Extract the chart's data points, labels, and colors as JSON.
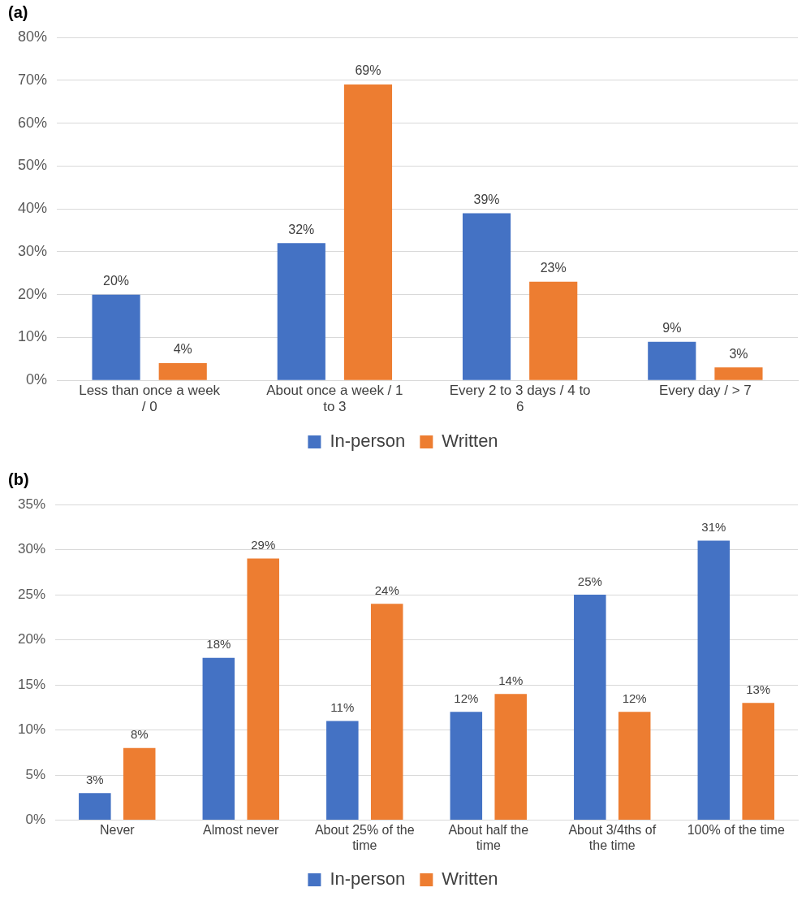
{
  "chart_data": [
    {
      "type": "bar",
      "title": "(a)",
      "categories": [
        "Less than once a week / 0",
        "About once a week / 1 to 3",
        "Every 2 to 3 days / 4 to 6",
        "Every day / > 7"
      ],
      "series": [
        {
          "name": "In-person",
          "color": "#4472c4",
          "values": [
            20,
            32,
            39,
            9
          ],
          "value_labels": [
            "20%",
            "32%",
            "39%",
            "9%"
          ]
        },
        {
          "name": "Written",
          "color": "#ed7d31",
          "values": [
            4,
            69,
            23,
            3
          ],
          "value_labels": [
            "4%",
            "69%",
            "23%",
            "3%"
          ]
        }
      ],
      "ylim": [
        0,
        80
      ],
      "yticks": [
        {
          "value": 0,
          "label": "0%"
        },
        {
          "value": 10,
          "label": "10%"
        },
        {
          "value": 20,
          "label": "20%"
        },
        {
          "value": 30,
          "label": "30%"
        },
        {
          "value": 40,
          "label": "40%"
        },
        {
          "value": 50,
          "label": "50%"
        },
        {
          "value": 60,
          "label": "60%"
        },
        {
          "value": 70,
          "label": "70%"
        },
        {
          "value": 80,
          "label": "80%"
        }
      ],
      "grid": "y",
      "legend": "bottom"
    },
    {
      "type": "bar",
      "title": "(b)",
      "categories": [
        "Never",
        "Almost never",
        "About 25% of the time",
        "About half the time",
        "About 3/4ths of the time",
        "100% of the time"
      ],
      "series": [
        {
          "name": "In-person",
          "color": "#4472c4",
          "values": [
            3,
            18,
            11,
            12,
            25,
            31
          ],
          "value_labels": [
            "3%",
            "18%",
            "11%",
            "12%",
            "25%",
            "31%"
          ]
        },
        {
          "name": "Written",
          "color": "#ed7d31",
          "values": [
            8,
            29,
            24,
            14,
            12,
            13
          ],
          "value_labels": [
            "8%",
            "29%",
            "24%",
            "14%",
            "12%",
            "13%"
          ]
        }
      ],
      "ylim": [
        0,
        35
      ],
      "yticks": [
        {
          "value": 0,
          "label": "0%"
        },
        {
          "value": 5,
          "label": "5%"
        },
        {
          "value": 10,
          "label": "10%"
        },
        {
          "value": 15,
          "label": "15%"
        },
        {
          "value": 20,
          "label": "20%"
        },
        {
          "value": 25,
          "label": "25%"
        },
        {
          "value": 30,
          "label": "30%"
        },
        {
          "value": 35,
          "label": "35%"
        }
      ],
      "grid": "y",
      "legend": "bottom"
    }
  ]
}
